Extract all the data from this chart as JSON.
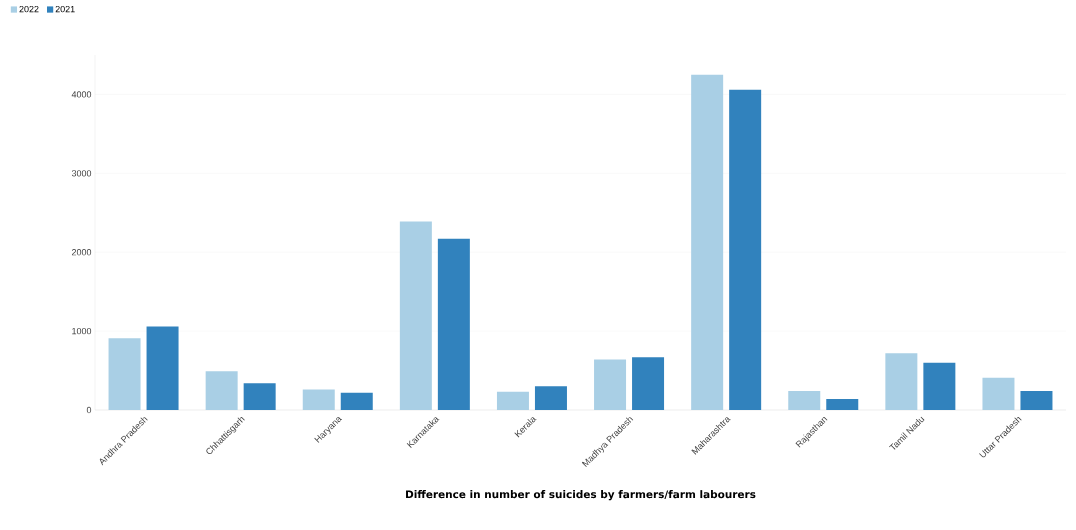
{
  "chart_data": {
    "type": "bar",
    "xlabel": "Difference in number of suicides by farmers/farm labourers",
    "categories": [
      "Andhra Pradesh",
      "Chhattisgarh",
      "Haryana",
      "Karnataka",
      "Kerala",
      "Madhya Pradesh",
      "Maharashtra",
      "Rajasthan",
      "Tamil Nadu",
      "Uttar Pradesh"
    ],
    "series": [
      {
        "name": "2022",
        "color": "#a9cfe5",
        "values": [
          910,
          490,
          260,
          2390,
          230,
          640,
          4250,
          240,
          720,
          410
        ]
      },
      {
        "name": "2021",
        "color": "#3182bd",
        "values": [
          1060,
          340,
          220,
          2170,
          300,
          670,
          4060,
          140,
          600,
          240
        ]
      }
    ],
    "ylim": [
      0,
      4500
    ],
    "yticks": [
      0,
      1000,
      2000,
      3000,
      4000
    ],
    "grid": "y",
    "legend": "top left"
  }
}
